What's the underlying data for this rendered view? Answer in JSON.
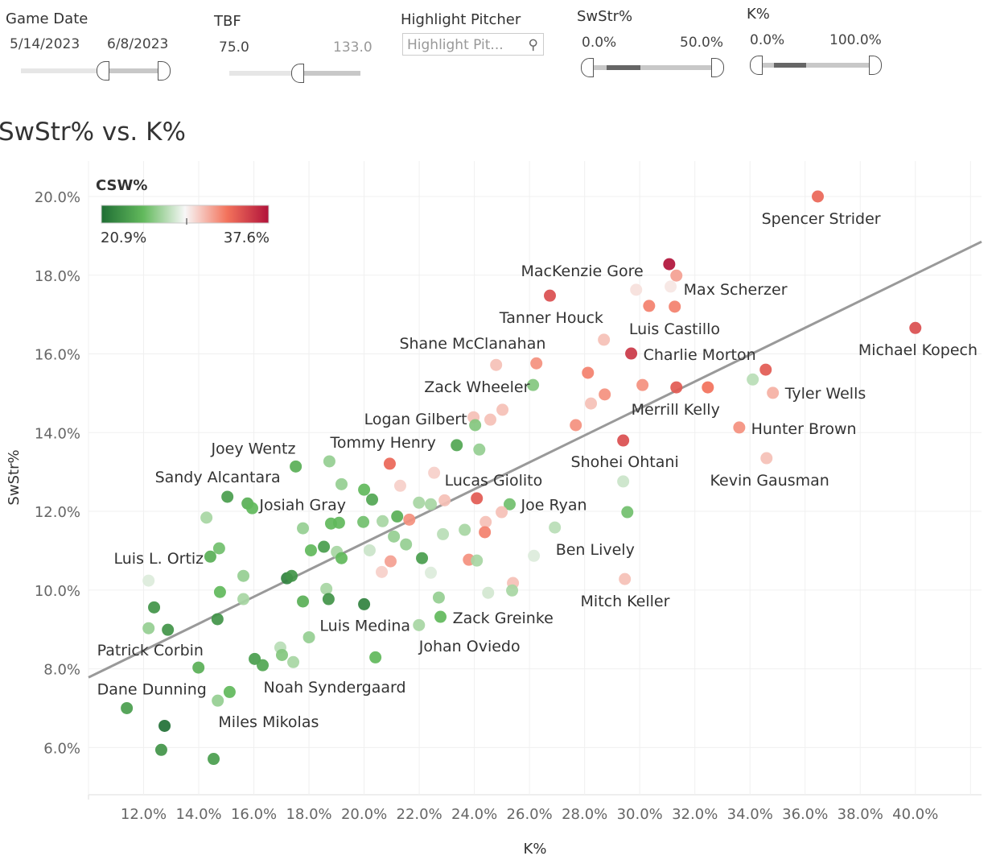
{
  "filters": {
    "game_date": {
      "title": "Game Date",
      "min": "5/14/2023",
      "max": "6/8/2023"
    },
    "tbf": {
      "title": "TBF",
      "min": "75.0",
      "max": "133.0"
    },
    "highlight": {
      "title": "Highlight Pitcher",
      "placeholder": "Highlight Pit...",
      "icon": "search-icon"
    },
    "swstr": {
      "title": "SwStr%",
      "min": "0.0%",
      "max": "50.0%"
    },
    "k": {
      "title": "K%",
      "min": "0.0%",
      "max": "100.0%"
    }
  },
  "legend": {
    "title": "CSW%",
    "min_label": "20.9%",
    "max_label": "37.6%",
    "colors": [
      "#1f6e34",
      "#62b95c",
      "#f7f7f7",
      "#f3735c",
      "#b1123a"
    ]
  },
  "chart_data": {
    "type": "scatter",
    "title": "SwStr% vs. K%",
    "xlabel": "K%",
    "ylabel": "SwStr%",
    "xlim": [
      10.0,
      42.4
    ],
    "ylim": [
      4.8,
      20.9
    ],
    "xticks": [
      "12.0%",
      "14.0%",
      "16.0%",
      "18.0%",
      "20.0%",
      "22.0%",
      "24.0%",
      "26.0%",
      "28.0%",
      "30.0%",
      "32.0%",
      "34.0%",
      "36.0%",
      "38.0%",
      "40.0%"
    ],
    "xtick_values": [
      12,
      14,
      16,
      18,
      20,
      22,
      24,
      26,
      28,
      30,
      32,
      34,
      36,
      38,
      40
    ],
    "yticks": [
      "6.0%",
      "8.0%",
      "10.0%",
      "12.0%",
      "14.0%",
      "16.0%",
      "18.0%",
      "20.0%"
    ],
    "ytick_values": [
      6,
      8,
      10,
      12,
      14,
      16,
      18,
      20
    ],
    "grid": true,
    "color_field": "CSW%",
    "color_range": [
      20.9,
      37.6
    ],
    "trendline": {
      "x": [
        10.0,
        42.4
      ],
      "y": [
        7.78,
        18.85
      ]
    },
    "points": [
      [
        36.46,
        20.0,
        34
      ],
      [
        31.07,
        18.28,
        37.6
      ],
      [
        31.33,
        17.99,
        32
      ],
      [
        29.87,
        17.63,
        30
      ],
      [
        31.12,
        17.71,
        29.8
      ],
      [
        26.74,
        17.48,
        35
      ],
      [
        30.34,
        17.22,
        33
      ],
      [
        31.27,
        17.2,
        33
      ],
      [
        40.0,
        16.66,
        35
      ],
      [
        28.7,
        16.36,
        31
      ],
      [
        29.69,
        16.01,
        36
      ],
      [
        24.79,
        15.72,
        31
      ],
      [
        26.25,
        15.76,
        32.5
      ],
      [
        28.12,
        15.52,
        33
      ],
      [
        34.57,
        15.6,
        34.5
      ],
      [
        34.1,
        15.35,
        27.5
      ],
      [
        26.13,
        15.21,
        26
      ],
      [
        30.1,
        15.21,
        32.5
      ],
      [
        31.33,
        15.15,
        34.5
      ],
      [
        32.47,
        15.15,
        33.5
      ],
      [
        28.73,
        14.97,
        32.5
      ],
      [
        34.83,
        15.01,
        31.5
      ],
      [
        28.23,
        14.74,
        31
      ],
      [
        25.02,
        14.58,
        31
      ],
      [
        24.58,
        14.33,
        31
      ],
      [
        23.97,
        14.39,
        31
      ],
      [
        24.03,
        14.19,
        26
      ],
      [
        27.68,
        14.19,
        32.5
      ],
      [
        33.61,
        14.13,
        32.5
      ],
      [
        29.4,
        13.8,
        35
      ],
      [
        23.36,
        13.68,
        24
      ],
      [
        24.18,
        13.57,
        26.5
      ],
      [
        34.6,
        13.35,
        31
      ],
      [
        17.52,
        13.14,
        24.5
      ],
      [
        18.74,
        13.27,
        26.5
      ],
      [
        20.93,
        13.21,
        34
      ],
      [
        22.54,
        12.98,
        30.5
      ],
      [
        21.31,
        12.65,
        30.5
      ],
      [
        19.18,
        12.69,
        26.5
      ],
      [
        20.0,
        12.55,
        25
      ],
      [
        29.4,
        12.76,
        28
      ],
      [
        15.04,
        12.37,
        23.5
      ],
      [
        15.77,
        12.2,
        24.5
      ],
      [
        15.94,
        12.08,
        25
      ],
      [
        20.29,
        12.3,
        24
      ],
      [
        21.99,
        12.22,
        27
      ],
      [
        22.42,
        12.18,
        27
      ],
      [
        22.92,
        12.28,
        31
      ],
      [
        24.09,
        12.33,
        34.5
      ],
      [
        25.28,
        12.18,
        25.5
      ],
      [
        24.99,
        11.98,
        31
      ],
      [
        14.28,
        11.84,
        27
      ],
      [
        17.78,
        11.57,
        26.5
      ],
      [
        18.8,
        11.69,
        25
      ],
      [
        19.09,
        11.71,
        25
      ],
      [
        19.97,
        11.73,
        25.5
      ],
      [
        20.67,
        11.75,
        27
      ],
      [
        21.2,
        11.87,
        24.5
      ],
      [
        21.64,
        11.79,
        32.5
      ],
      [
        24.41,
        11.73,
        31
      ],
      [
        29.55,
        11.98,
        25.5
      ],
      [
        26.92,
        11.59,
        27.5
      ],
      [
        21.08,
        11.36,
        26.5
      ],
      [
        22.86,
        11.42,
        27.5
      ],
      [
        23.65,
        11.53,
        27
      ],
      [
        24.38,
        11.47,
        33
      ],
      [
        21.52,
        11.16,
        26.5
      ],
      [
        14.42,
        10.85,
        24.5
      ],
      [
        14.74,
        11.06,
        25.5
      ],
      [
        18.07,
        11.01,
        25
      ],
      [
        18.54,
        11.1,
        23.5
      ],
      [
        19.01,
        10.97,
        27
      ],
      [
        19.18,
        10.81,
        25
      ],
      [
        20.2,
        11.01,
        28
      ],
      [
        22.1,
        10.81,
        23.5
      ],
      [
        23.8,
        10.77,
        32.5
      ],
      [
        24.09,
        10.75,
        27
      ],
      [
        20.96,
        10.73,
        32
      ],
      [
        26.16,
        10.87,
        28.5
      ],
      [
        20.64,
        10.46,
        30.5
      ],
      [
        22.42,
        10.44,
        28.5
      ],
      [
        12.18,
        10.24,
        28.5
      ],
      [
        15.62,
        10.36,
        26.5
      ],
      [
        17.2,
        10.3,
        22
      ],
      [
        17.37,
        10.36,
        23
      ],
      [
        29.46,
        10.28,
        31
      ],
      [
        25.4,
        10.18,
        31
      ],
      [
        14.77,
        9.95,
        25
      ],
      [
        18.63,
        10.03,
        27
      ],
      [
        24.5,
        9.93,
        28.2
      ],
      [
        25.37,
        9.99,
        27
      ],
      [
        15.62,
        9.77,
        27
      ],
      [
        17.78,
        9.71,
        24.5
      ],
      [
        18.71,
        9.77,
        23
      ],
      [
        20.0,
        9.64,
        22
      ],
      [
        22.71,
        9.81,
        26.5
      ],
      [
        12.38,
        9.56,
        23
      ],
      [
        14.68,
        9.26,
        23
      ],
      [
        22.77,
        9.32,
        25
      ],
      [
        12.18,
        9.03,
        26.5
      ],
      [
        12.88,
        8.99,
        23
      ],
      [
        21.99,
        9.11,
        27
      ],
      [
        18.0,
        8.8,
        26.5
      ],
      [
        16.96,
        8.54,
        27.5
      ],
      [
        17.02,
        8.35,
        26
      ],
      [
        16.03,
        8.25,
        23.5
      ],
      [
        16.32,
        8.09,
        24
      ],
      [
        17.43,
        8.17,
        27
      ],
      [
        20.41,
        8.29,
        25
      ],
      [
        13.99,
        8.03,
        24.5
      ],
      [
        15.12,
        7.41,
        25
      ],
      [
        14.69,
        7.19,
        26.5
      ],
      [
        11.39,
        7.0,
        23.5
      ],
      [
        12.76,
        6.55,
        21
      ],
      [
        12.64,
        5.94,
        23
      ],
      [
        14.54,
        5.71,
        23.5
      ]
    ],
    "annotations": [
      {
        "text": "Spencer Strider",
        "x": 34.42,
        "y": 19.45
      },
      {
        "text": "MacKenzie Gore",
        "x": 25.69,
        "y": 18.12
      },
      {
        "text": "Max Scherzer",
        "x": 31.59,
        "y": 17.65
      },
      {
        "text": "Tanner Houck",
        "x": 24.91,
        "y": 16.93
      },
      {
        "text": "Luis Castillo",
        "x": 29.61,
        "y": 16.64
      },
      {
        "text": "Charlie Morton",
        "x": 30.13,
        "y": 15.99
      },
      {
        "text": "Michael Kopech",
        "x": 37.93,
        "y": 16.11
      },
      {
        "text": "Shane McClanahan",
        "x": 21.28,
        "y": 16.28
      },
      {
        "text": "Zack Wheeler",
        "x": 22.18,
        "y": 15.17
      },
      {
        "text": "Tyler Wells",
        "x": 35.27,
        "y": 15.01
      },
      {
        "text": "Merrill Kelly",
        "x": 29.69,
        "y": 14.6
      },
      {
        "text": "Logan Gilbert",
        "x": 20.0,
        "y": 14.35
      },
      {
        "text": "Hunter Brown",
        "x": 34.04,
        "y": 14.11
      },
      {
        "text": "Tommy Henry",
        "x": 18.77,
        "y": 13.76
      },
      {
        "text": "Joey Wentz",
        "x": 14.45,
        "y": 13.61
      },
      {
        "text": "Shohei Ohtani",
        "x": 27.5,
        "y": 13.27
      },
      {
        "text": "Sandy Alcantara",
        "x": 12.41,
        "y": 12.88
      },
      {
        "text": "Lucas Giolito",
        "x": 22.92,
        "y": 12.8
      },
      {
        "text": "Kevin Gausman",
        "x": 32.55,
        "y": 12.8
      },
      {
        "text": "Josiah Gray",
        "x": 16.2,
        "y": 12.18
      },
      {
        "text": "Joe Ryan",
        "x": 25.69,
        "y": 12.18
      },
      {
        "text": "Ben Lively",
        "x": 26.95,
        "y": 11.04
      },
      {
        "text": "Luis L. Ortiz",
        "x": 10.92,
        "y": 10.81
      },
      {
        "text": "Mitch Keller",
        "x": 27.85,
        "y": 9.73
      },
      {
        "text": "Zack Greinke",
        "x": 23.21,
        "y": 9.3
      },
      {
        "text": "Luis Medina",
        "x": 18.39,
        "y": 9.11
      },
      {
        "text": "Johan Oviedo",
        "x": 21.99,
        "y": 8.58
      },
      {
        "text": "Patrick Corbin",
        "x": 10.31,
        "y": 8.48
      },
      {
        "text": "Dane Dunning",
        "x": 10.31,
        "y": 7.49
      },
      {
        "text": "Noah Syndergaard",
        "x": 16.35,
        "y": 7.54
      },
      {
        "text": "Miles Mikolas",
        "x": 14.71,
        "y": 6.66
      }
    ]
  }
}
